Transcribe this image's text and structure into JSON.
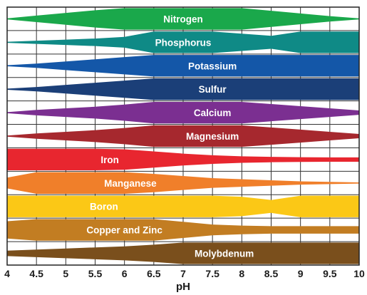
{
  "chart_data": {
    "type": "area",
    "xlabel": "pH",
    "xlim": [
      4,
      10
    ],
    "grid": true,
    "x_ticks": [
      "4",
      "4.5",
      "5",
      "5.5",
      "6",
      "6.5",
      "7",
      "7.5",
      "8",
      "8.5",
      "9",
      "9.5",
      "10"
    ],
    "x": [
      4,
      4.5,
      5,
      5.5,
      6,
      6.5,
      7,
      7.5,
      8,
      8.5,
      9,
      9.5,
      10
    ],
    "series": [
      {
        "name": "Nitrogen",
        "color": "#1aa84b",
        "label_x": 7,
        "values": [
          0.05,
          0.3,
          0.55,
          0.8,
          1.0,
          1.0,
          1.0,
          1.0,
          1.0,
          0.75,
          0.5,
          0.25,
          0.05
        ]
      },
      {
        "name": "Phosphorus",
        "color": "#0f8a86",
        "label_x": 7,
        "values": [
          0.05,
          0.15,
          0.25,
          0.35,
          0.5,
          1.0,
          1.0,
          1.0,
          0.8,
          0.6,
          1.0,
          1.0,
          1.0
        ]
      },
      {
        "name": "Potassium",
        "color": "#1457a8",
        "label_x": 7.5,
        "values": [
          0.05,
          0.2,
          0.4,
          0.6,
          0.8,
          1.0,
          1.0,
          1.0,
          1.0,
          1.0,
          1.0,
          1.0,
          1.0
        ]
      },
      {
        "name": "Sulfur",
        "color": "#1b3f78",
        "label_x": 7.5,
        "values": [
          0.05,
          0.2,
          0.4,
          0.6,
          0.8,
          1.0,
          1.0,
          1.0,
          1.0,
          1.0,
          1.0,
          1.0,
          1.0
        ]
      },
      {
        "name": "Calcium",
        "color": "#7b2f91",
        "label_x": 7.5,
        "values": [
          0.05,
          0.25,
          0.4,
          0.55,
          0.75,
          1.0,
          1.0,
          1.0,
          1.0,
          0.8,
          0.6,
          0.4,
          0.2
        ]
      },
      {
        "name": "Magnesium",
        "color": "#a6282e",
        "label_x": 7.5,
        "values": [
          0.05,
          0.25,
          0.4,
          0.55,
          0.75,
          1.0,
          1.0,
          1.0,
          1.0,
          0.8,
          0.6,
          0.4,
          0.2
        ]
      },
      {
        "name": "Iron",
        "color": "#e8262f",
        "label_x": 5.75,
        "values": [
          1.0,
          1.0,
          1.0,
          1.0,
          0.95,
          0.75,
          0.55,
          0.4,
          0.3,
          0.25,
          0.22,
          0.2,
          0.2
        ]
      },
      {
        "name": "Manganese",
        "color": "#f07f2a",
        "label_x": 6.1,
        "values": [
          0.5,
          1.0,
          1.0,
          1.0,
          1.0,
          0.85,
          0.65,
          0.45,
          0.35,
          0.25,
          0.15,
          0.1,
          0.05
        ]
      },
      {
        "name": "Boron",
        "color": "#fbc816",
        "label_x": 5.65,
        "values": [
          1.0,
          1.0,
          1.0,
          1.0,
          1.0,
          1.0,
          1.0,
          1.0,
          0.9,
          0.6,
          1.0,
          1.0,
          1.0
        ]
      },
      {
        "name": "Copper and Zinc",
        "color": "#c27d22",
        "label_x": 6.0,
        "values": [
          0.8,
          1.0,
          1.0,
          1.0,
          1.0,
          1.0,
          0.75,
          0.5,
          0.4,
          0.35,
          0.35,
          0.35,
          0.35
        ]
      },
      {
        "name": "Molybdenum",
        "color": "#7a4f1c",
        "label_x": 7.7,
        "values": [
          0.25,
          0.35,
          0.45,
          0.55,
          0.65,
          0.8,
          1.0,
          1.0,
          1.0,
          1.0,
          1.0,
          1.0,
          1.0
        ]
      }
    ]
  }
}
